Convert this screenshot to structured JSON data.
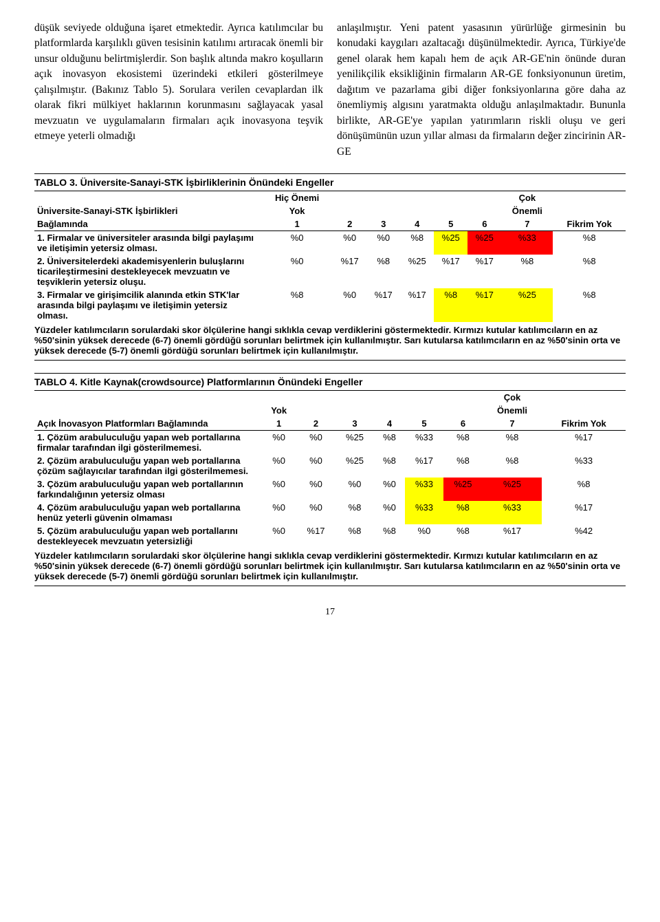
{
  "colors": {
    "red": "#ff0000",
    "yellow": "#ffff00",
    "none": "transparent"
  },
  "text": {
    "left_col": "düşük seviyede olduğuna işaret etmektedir. Ayrıca katılımcılar bu platformlarda karşılıklı güven tesisinin katılımı artıracak önemli bir unsur olduğunu belirtmişlerdir.\n\nSon başlık altında makro koşulların açık inovasyon ekosistemi üzerindeki etkileri gösterilmeye çalışılmıştır. (Bakınız Tablo 5). Sorulara verilen cevaplardan ilk olarak fikri mülkiyet haklarının korunmasını sağlayacak yasal mevzuatın ve uygulamaların firmaları açık inovasyona teşvik etmeye yeterli olmadığı",
    "right_col": "anlaşılmıştır. Yeni patent yasasının yürürlüğe girmesinin bu konudaki kaygıları azaltacağı düşünülmektedir. Ayrıca, Türkiye'de genel olarak hem kapalı hem de açık AR-GE'nin önünde duran yenilikçilik eksikliğinin firmaların AR-GE fonksiyonunun üretim, dağıtım ve pazarlama gibi diğer fonksiyonlarına göre daha az önemliymiş algısını yaratmakta olduğu anlaşılmaktadır. Bununla birlikte, AR-GE'ye yapılan yatırımların riskli oluşu ve geri dönüşümünün uzun yıllar alması da firmaların değer zincirinin AR-GE"
  },
  "table3": {
    "title": "TABLO 3. Üniversite-Sanayi-STK İşbirliklerinin Önündeki Engeller",
    "top_left_label1": "Hiç Önemi",
    "top_left_label2": "Yok",
    "top_right_label1": "Çok",
    "top_right_label2": "Önemli",
    "row_header_label": "Üniversite-Sanayi-STK İşbirlikleri Bağlamında",
    "cols": [
      "1",
      "2",
      "3",
      "4",
      "5",
      "6",
      "7",
      "Fikrim Yok"
    ],
    "rows": [
      {
        "label": "1. Firmalar ve üniversiteler arasında bilgi paylaşımı ve iletişimin yetersiz olması.",
        "cells": [
          {
            "v": "%0",
            "hl": "none"
          },
          {
            "v": "%0",
            "hl": "none"
          },
          {
            "v": "%0",
            "hl": "none"
          },
          {
            "v": "%8",
            "hl": "none"
          },
          {
            "v": "%25",
            "hl": "yellow"
          },
          {
            "v": "%25",
            "hl": "red"
          },
          {
            "v": "%33",
            "hl": "red"
          },
          {
            "v": "%8",
            "hl": "none"
          }
        ]
      },
      {
        "label": "2. Üniversitelerdeki akademisyenlerin buluşlarını ticarileştirmesini destekleyecek mevzuatın ve teşviklerin yetersiz oluşu.",
        "cells": [
          {
            "v": "%0",
            "hl": "none"
          },
          {
            "v": "%17",
            "hl": "none"
          },
          {
            "v": "%8",
            "hl": "none"
          },
          {
            "v": "%25",
            "hl": "none"
          },
          {
            "v": "%17",
            "hl": "none"
          },
          {
            "v": "%17",
            "hl": "none"
          },
          {
            "v": "%8",
            "hl": "none"
          },
          {
            "v": "%8",
            "hl": "none"
          }
        ]
      },
      {
        "label": "3. Firmalar ve girişimcilik alanında etkin STK'lar arasında bilgi paylaşımı ve iletişimin yetersiz olması.",
        "cells": [
          {
            "v": "%8",
            "hl": "none"
          },
          {
            "v": "%0",
            "hl": "none"
          },
          {
            "v": "%17",
            "hl": "none"
          },
          {
            "v": "%17",
            "hl": "none"
          },
          {
            "v": "%8",
            "hl": "yellow"
          },
          {
            "v": "%17",
            "hl": "yellow"
          },
          {
            "v": "%25",
            "hl": "yellow"
          },
          {
            "v": "%8",
            "hl": "none"
          }
        ]
      }
    ],
    "footnote": "Yüzdeler katılımcıların sorulardaki skor ölçülerine hangi sıklıkla cevap verdiklerini göstermektedir. Kırmızı kutular katılımcıların en az %50'sinin yüksek derecede (6-7) önemli gördüğü sorunları belirtmek için kullanılmıştır. Sarı kutularsa katılımcıların en az %50'sinin orta ve yüksek derecede (5-7) önemli gördüğü sorunları belirtmek için kullanılmıştır."
  },
  "table4": {
    "title": "TABLO 4. Kitle Kaynak(crowdsource) Platformlarının Önündeki Engeller",
    "top_left_label": "Yok",
    "top_right_label1": "Çok",
    "top_right_label2": "Önemli",
    "row_header_label": "Açık İnovasyon Platformları Bağlamında",
    "cols": [
      "1",
      "2",
      "3",
      "4",
      "5",
      "6",
      "7",
      "Fikrim Yok"
    ],
    "rows": [
      {
        "label": "1. Çözüm arabuluculuğu yapan web portallarına firmalar tarafından ilgi gösterilmemesi.",
        "cells": [
          {
            "v": "%0",
            "hl": "none"
          },
          {
            "v": "%0",
            "hl": "none"
          },
          {
            "v": "%25",
            "hl": "none"
          },
          {
            "v": "%8",
            "hl": "none"
          },
          {
            "v": "%33",
            "hl": "none"
          },
          {
            "v": "%8",
            "hl": "none"
          },
          {
            "v": "%8",
            "hl": "none"
          },
          {
            "v": "%17",
            "hl": "none"
          }
        ]
      },
      {
        "label": "2. Çözüm arabuluculuğu yapan web portallarına çözüm sağlayıcılar tarafından ilgi gösterilmemesi.",
        "cells": [
          {
            "v": "%0",
            "hl": "none"
          },
          {
            "v": "%0",
            "hl": "none"
          },
          {
            "v": "%25",
            "hl": "none"
          },
          {
            "v": "%8",
            "hl": "none"
          },
          {
            "v": "%17",
            "hl": "none"
          },
          {
            "v": "%8",
            "hl": "none"
          },
          {
            "v": "%8",
            "hl": "none"
          },
          {
            "v": "%33",
            "hl": "none"
          }
        ]
      },
      {
        "label": "3. Çözüm arabuluculuğu yapan web portallarının farkındalığının yetersiz olması",
        "cells": [
          {
            "v": "%0",
            "hl": "none"
          },
          {
            "v": "%0",
            "hl": "none"
          },
          {
            "v": "%0",
            "hl": "none"
          },
          {
            "v": "%0",
            "hl": "none"
          },
          {
            "v": "%33",
            "hl": "yellow"
          },
          {
            "v": "%25",
            "hl": "red"
          },
          {
            "v": "%25",
            "hl": "red"
          },
          {
            "v": "%8",
            "hl": "none"
          }
        ]
      },
      {
        "label": "4. Çözüm arabuluculuğu yapan web portallarına henüz yeterli güvenin olmaması",
        "cells": [
          {
            "v": "%0",
            "hl": "none"
          },
          {
            "v": "%0",
            "hl": "none"
          },
          {
            "v": "%8",
            "hl": "none"
          },
          {
            "v": "%0",
            "hl": "none"
          },
          {
            "v": "%33",
            "hl": "yellow"
          },
          {
            "v": "%8",
            "hl": "yellow"
          },
          {
            "v": "%33",
            "hl": "yellow"
          },
          {
            "v": "%17",
            "hl": "none"
          }
        ]
      },
      {
        "label": "5. Çözüm arabuluculuğu yapan web portallarını destekleyecek mevzuatın yetersizliği",
        "cells": [
          {
            "v": "%0",
            "hl": "none"
          },
          {
            "v": "%17",
            "hl": "none"
          },
          {
            "v": "%8",
            "hl": "none"
          },
          {
            "v": "%8",
            "hl": "none"
          },
          {
            "v": "%0",
            "hl": "none"
          },
          {
            "v": "%8",
            "hl": "none"
          },
          {
            "v": "%17",
            "hl": "none"
          },
          {
            "v": "%42",
            "hl": "none"
          }
        ]
      }
    ],
    "footnote": "Yüzdeler katılımcıların sorulardaki skor ölçülerine hangi sıklıkla cevap verdiklerini göstermektedir. Kırmızı kutular katılımcıların en az %50'sinin yüksek derecede (6-7) önemli gördüğü sorunları belirtmek için kullanılmıştır. Sarı kutularsa katılımcıların en az %50'sinin orta ve yüksek derecede (5-7) önemli gördüğü sorunları belirtmek için kullanılmıştır."
  },
  "page_number": "17"
}
